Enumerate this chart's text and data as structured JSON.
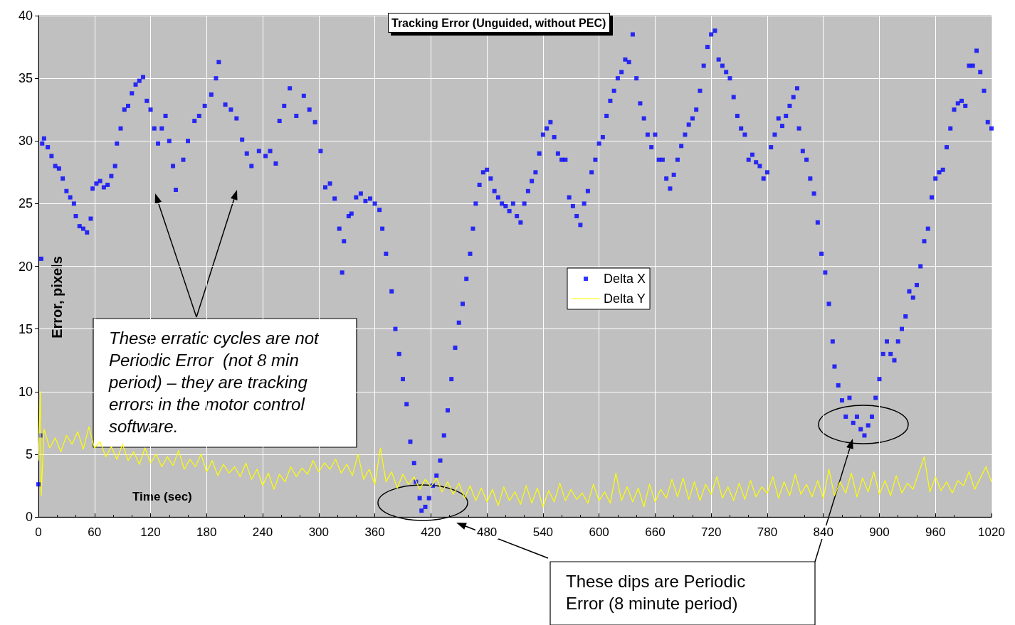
{
  "chart_data": {
    "type": "scatter",
    "title": "Tracking Error (Unguided, without PEC)",
    "xlabel": "Time (sec)",
    "ylabel": "Error, pixels",
    "xlim": [
      0,
      1020
    ],
    "xticks": [
      0,
      60,
      120,
      180,
      240,
      300,
      360,
      420,
      480,
      540,
      600,
      660,
      720,
      780,
      840,
      900,
      960,
      1020
    ],
    "ylim": [
      0,
      40
    ],
    "yticks": [
      0,
      5,
      10,
      15,
      20,
      25,
      30,
      35,
      40
    ],
    "grid": true,
    "legend": "center",
    "annotations": [
      "These erratic cycles are not Periodic Error  (not 8 min period) – they are tracking errors in the motor control software.",
      "These dips are Periodic Error (8 minute period)"
    ],
    "series": [
      {
        "name": "Delta X",
        "marker": "square",
        "color": "#0000ff",
        "x": [
          0,
          2,
          3,
          4,
          6,
          10,
          14,
          18,
          22,
          26,
          30,
          34,
          38,
          40,
          44,
          48,
          52,
          56,
          58,
          62,
          66,
          70,
          74,
          78,
          82,
          84,
          88,
          92,
          96,
          100,
          104,
          108,
          112,
          116,
          120,
          124,
          128,
          132,
          136,
          140,
          144,
          147,
          155,
          160,
          167,
          172,
          178,
          185,
          190,
          193,
          200,
          206,
          212,
          218,
          223,
          228,
          236,
          243,
          248,
          254,
          258,
          263,
          269,
          276,
          284,
          290,
          296,
          302,
          307,
          312,
          317,
          322,
          325,
          327,
          332,
          335,
          340,
          345,
          350,
          355,
          360,
          365,
          368,
          372,
          378,
          382,
          386,
          390,
          394,
          398,
          402,
          404,
          408,
          410,
          414,
          418,
          422,
          426,
          430,
          434,
          438,
          442,
          446,
          450,
          454,
          458,
          462,
          465,
          468,
          472,
          476,
          480,
          484,
          488,
          492,
          496,
          500,
          504,
          508,
          512,
          516,
          520,
          524,
          528,
          532,
          536,
          540,
          544,
          548,
          552,
          556,
          560,
          564,
          568,
          572,
          576,
          580,
          584,
          588,
          592,
          596,
          600,
          604,
          608,
          612,
          616,
          620,
          624,
          628,
          632,
          636,
          640,
          644,
          648,
          652,
          656,
          660,
          664,
          668,
          672,
          676,
          680,
          684,
          688,
          692,
          696,
          700,
          704,
          708,
          712,
          716,
          720,
          724,
          728,
          732,
          736,
          740,
          744,
          748,
          752,
          756,
          760,
          764,
          768,
          772,
          776,
          780,
          784,
          788,
          792,
          796,
          800,
          804,
          808,
          812,
          814,
          818,
          822,
          826,
          830,
          834,
          838,
          842,
          846,
          850,
          852,
          856,
          860,
          864,
          868,
          872,
          876,
          880,
          884,
          888,
          892,
          896,
          900,
          904,
          908,
          912,
          916,
          920,
          924,
          928,
          932,
          936,
          940,
          944,
          948,
          952,
          956,
          960,
          964,
          968,
          972,
          976,
          980,
          984,
          988,
          992,
          996,
          1000,
          1004,
          1008,
          1012,
          1016,
          1020
        ],
        "values": [
          2.6,
          6.5,
          20.6,
          29.8,
          30.2,
          29.5,
          28.8,
          28,
          27.8,
          27,
          26,
          25.5,
          25,
          24,
          23.2,
          23,
          22.7,
          23.8,
          26.2,
          26.6,
          26.8,
          26.3,
          26.5,
          27.2,
          28,
          29.8,
          31,
          32.5,
          32.8,
          33.8,
          34.5,
          34.8,
          35.1,
          33.2,
          32.5,
          31,
          29.8,
          31,
          32,
          30,
          28,
          26.1,
          28.5,
          30,
          31.6,
          32,
          32.8,
          33.7,
          35,
          36.3,
          32.9,
          32.5,
          31.8,
          30.1,
          29,
          28,
          29.2,
          28.8,
          29.2,
          28.2,
          31.6,
          32.8,
          34.2,
          32,
          33.6,
          32.5,
          31.5,
          29.2,
          26.3,
          26.6,
          25.4,
          23,
          19.5,
          22,
          24,
          24.2,
          25.5,
          25.8,
          25.2,
          25.4,
          25,
          24.5,
          23,
          21,
          18,
          15,
          13,
          11,
          9,
          6,
          4.3,
          2.8,
          1.5,
          0.5,
          0.8,
          1.5,
          2.5,
          3.3,
          4.5,
          6.5,
          8.5,
          11,
          13.5,
          15.5,
          17,
          19,
          21,
          23,
          25,
          26.5,
          27.5,
          27.7,
          27,
          26,
          25.5,
          25,
          24.8,
          24.4,
          25,
          24,
          23.5,
          25,
          26,
          26.8,
          27.5,
          29,
          30.5,
          31,
          31.5,
          30.3,
          29,
          28.5,
          28.5,
          25.5,
          24.8,
          24,
          23.3,
          25,
          26,
          27.5,
          28.5,
          29.8,
          30.3,
          32,
          33.2,
          34,
          35,
          35.5,
          36.5,
          36.3,
          38.5,
          35,
          33,
          31.8,
          30.5,
          29.5,
          30.5,
          28.5,
          28.5,
          27,
          26.2,
          27.3,
          28.5,
          29.6,
          30.5,
          31.3,
          31.8,
          32.5,
          34,
          36,
          37.5,
          38.5,
          38.8,
          36.5,
          36,
          35.5,
          35,
          33.5,
          32,
          31,
          30.5,
          28.5,
          28.9,
          28.3,
          28,
          27,
          27.5,
          29.5,
          30.5,
          31.8,
          31.2,
          32,
          32.8,
          33.5,
          34.2,
          31,
          29.2,
          28.5,
          27,
          25.8,
          23.5,
          21,
          19.5,
          17,
          14,
          12,
          10.5,
          9.3,
          8,
          9.5,
          7.5,
          8,
          7,
          6.5,
          7.3,
          8,
          9.5,
          11,
          13,
          14,
          13,
          12.5,
          14,
          15,
          16,
          18,
          17.5,
          18.5,
          20,
          22,
          23,
          25.5,
          27,
          27.5,
          27.7,
          29.5,
          31,
          32.5,
          33,
          33.2,
          32.8,
          36,
          36,
          37.2,
          35.5,
          34,
          31.5,
          31
        ]
      },
      {
        "name": "Delta Y",
        "type": "line",
        "marker": "none",
        "line_style": "solid",
        "color": "#ffff00",
        "x": [
          0,
          2,
          3,
          6,
          12,
          18,
          24,
          30,
          36,
          42,
          48,
          54,
          60,
          66,
          72,
          78,
          84,
          90,
          96,
          102,
          108,
          114,
          120,
          126,
          132,
          138,
          144,
          150,
          156,
          162,
          168,
          174,
          180,
          186,
          192,
          198,
          204,
          210,
          216,
          222,
          228,
          234,
          240,
          246,
          252,
          258,
          264,
          270,
          276,
          282,
          288,
          294,
          300,
          306,
          312,
          318,
          324,
          330,
          336,
          342,
          348,
          354,
          360,
          366,
          372,
          378,
          384,
          390,
          396,
          402,
          408,
          414,
          420,
          426,
          432,
          438,
          444,
          450,
          456,
          462,
          468,
          474,
          480,
          486,
          492,
          498,
          504,
          510,
          516,
          522,
          528,
          534,
          540,
          546,
          552,
          558,
          564,
          570,
          576,
          582,
          588,
          594,
          600,
          606,
          612,
          618,
          624,
          630,
          636,
          642,
          648,
          654,
          660,
          666,
          672,
          678,
          684,
          690,
          696,
          702,
          708,
          714,
          720,
          726,
          732,
          738,
          744,
          750,
          756,
          762,
          768,
          774,
          780,
          786,
          792,
          798,
          804,
          810,
          816,
          822,
          828,
          834,
          840,
          846,
          852,
          858,
          864,
          870,
          876,
          882,
          888,
          894,
          900,
          906,
          912,
          918,
          924,
          930,
          936,
          942,
          948,
          954,
          960,
          966,
          972,
          978,
          984,
          990,
          996,
          1002,
          1008,
          1014,
          1020
        ],
        "values": [
          4.5,
          10,
          1.7,
          7,
          5.5,
          6.3,
          5.2,
          6.5,
          5.8,
          6.8,
          5.4,
          7.2,
          5.5,
          6,
          4.8,
          5.6,
          4.6,
          5.8,
          4.5,
          5.2,
          4.2,
          5.5,
          4.3,
          5,
          4,
          4.8,
          4.1,
          5.3,
          3.8,
          4.6,
          4,
          5,
          3.6,
          4.5,
          3.3,
          4.2,
          3.5,
          4,
          3.2,
          4.3,
          3,
          3.8,
          2.5,
          3.5,
          2.2,
          3.4,
          2.8,
          4,
          3.2,
          3.9,
          3.4,
          4.5,
          3.6,
          4.3,
          3.8,
          4.6,
          3.5,
          4.2,
          3.3,
          5,
          3,
          3.8,
          2.6,
          5.5,
          2.8,
          3.6,
          2.3,
          3.4,
          2.6,
          3.2,
          2.2,
          3,
          2.4,
          3.1,
          2,
          2.8,
          1.8,
          2.7,
          1.5,
          2.5,
          1.3,
          2.3,
          1.2,
          2.2,
          0.9,
          2.4,
          1.3,
          2,
          1,
          2.5,
          1.1,
          2.3,
          0.8,
          2.1,
          1.2,
          2.7,
          1.3,
          2.2,
          1.4,
          1.9,
          1.1,
          2.6,
          1.3,
          2,
          1.1,
          3.5,
          1.3,
          2.4,
          1.2,
          2.3,
          0.8,
          2.6,
          1.2,
          2.2,
          1.5,
          3,
          1.6,
          3.1,
          1.4,
          2.8,
          1.3,
          2.6,
          1.8,
          3.2,
          1.5,
          2.4,
          1.3,
          2.7,
          1.4,
          2.9,
          1.6,
          2.4,
          1.9,
          3.2,
          1.5,
          2.8,
          1.7,
          3.4,
          1.8,
          2.6,
          1.6,
          2.9,
          1.5,
          3.8,
          1.7,
          2.8,
          1.9,
          3.5,
          1.6,
          3.1,
          2,
          3.6,
          1.8,
          2.9,
          1.7,
          3.3,
          1.9,
          2.7,
          2.2,
          3.5,
          4.8,
          2,
          3.2,
          2.1,
          2.8,
          1.9,
          2.9,
          2.5,
          3.6,
          2.2,
          3.1,
          4,
          2.8
        ]
      }
    ]
  }
}
